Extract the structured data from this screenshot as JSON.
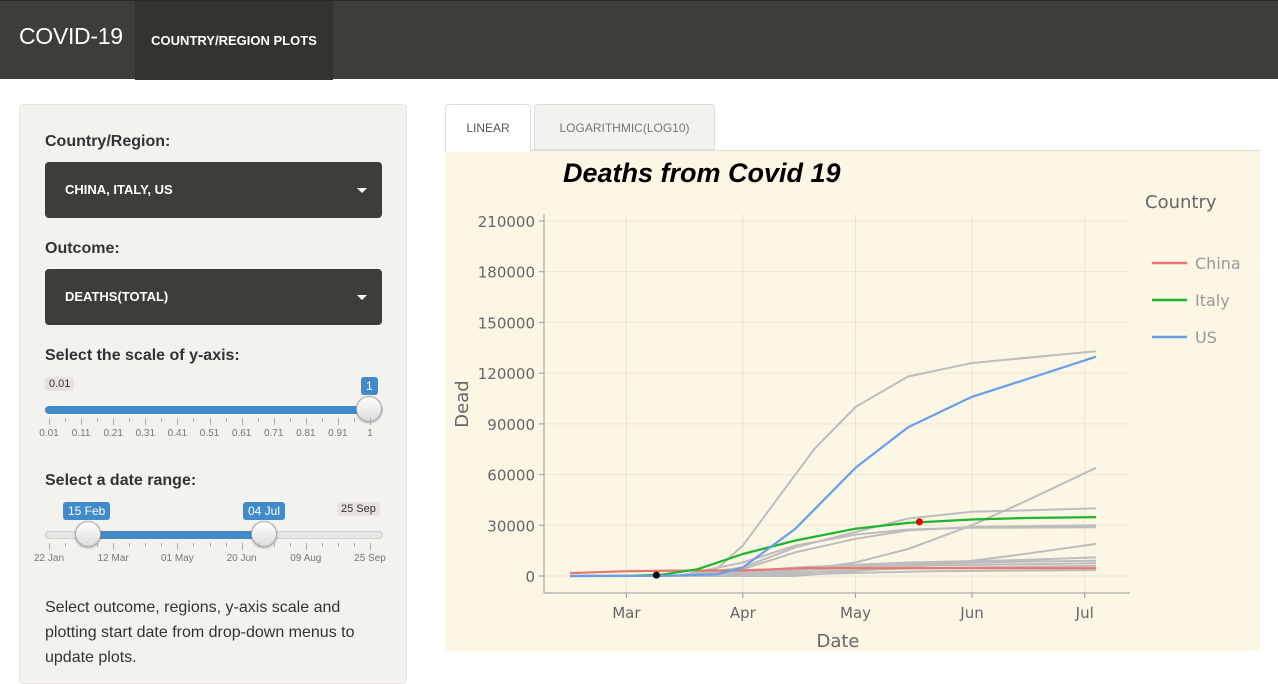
{
  "navbar": {
    "brand": "COVID-19",
    "tab": "COUNTRY/REGION PLOTS"
  },
  "sidebar": {
    "country_label": "Country/Region:",
    "country_value": "CHINA, ITALY, US",
    "outcome_label": "Outcome:",
    "outcome_value": "DEATHS(TOTAL)",
    "scale_label": "Select the scale of y-axis:",
    "scale_slider": {
      "min_label": "0.01",
      "max_label": "1",
      "value": 1,
      "value_label": "1",
      "min": 0.01,
      "max": 1,
      "tick_labels": [
        "0.01",
        "0.11",
        "0.21",
        "0.31",
        "0.41",
        "0.51",
        "0.61",
        "0.71",
        "0.81",
        "0.91",
        "1"
      ]
    },
    "date_label": "Select a date range:",
    "date_slider": {
      "max_label": "25 Sep",
      "from_label": "15 Feb",
      "to_label": "04 Jul",
      "from": "2020-02-15",
      "to": "2020-07-04",
      "min": "2020-01-22",
      "max": "2020-09-25",
      "tick_labels": [
        "22 Jan",
        "12 Mar",
        "01 May",
        "20 Jun",
        "09 Aug",
        "25 Sep"
      ]
    },
    "help_text": "Select outcome, regions, y-axis scale and plotting start date from drop-down menus to update plots."
  },
  "tabs": {
    "linear": "LINEAR",
    "log": "LOGARITHMIC(LOG10)",
    "active": "linear"
  },
  "colors": {
    "navbar": "#3e3d37",
    "plot_bg": "#fcf6e5",
    "china": "#e8776f",
    "italy": "#1db52f",
    "us": "#6a9eeb",
    "other": "#bdbdbd",
    "slider": "#428bca"
  },
  "chart_data": {
    "type": "line",
    "title": "Deaths from Covid 19",
    "xlabel": "Date",
    "ylabel": "Dead",
    "x_ticks": [
      "Mar",
      "Apr",
      "May",
      "Jun",
      "Jul"
    ],
    "y_ticks": [
      0,
      30000,
      60000,
      90000,
      120000,
      150000,
      180000,
      210000
    ],
    "ylim": [
      0,
      210000
    ],
    "xlim": [
      "2020-02-15",
      "2020-07-04"
    ],
    "legend_title": "Country",
    "legend_position": "right",
    "grid": true,
    "series": [
      {
        "name": "China",
        "color": "#e8776f",
        "points": [
          [
            "2020-02-15",
            1700
          ],
          [
            "2020-02-29",
            2800
          ],
          [
            "2020-03-15",
            3200
          ],
          [
            "2020-04-01",
            3300
          ],
          [
            "2020-04-17",
            4600
          ],
          [
            "2020-05-15",
            4640
          ],
          [
            "2020-07-04",
            4640
          ]
        ]
      },
      {
        "name": "Italy",
        "color": "#1db52f",
        "points": [
          [
            "2020-02-15",
            0
          ],
          [
            "2020-03-01",
            30
          ],
          [
            "2020-03-10",
            630
          ],
          [
            "2020-03-20",
            4000
          ],
          [
            "2020-04-01",
            13000
          ],
          [
            "2020-04-15",
            21000
          ],
          [
            "2020-05-01",
            28000
          ],
          [
            "2020-05-15",
            31400
          ],
          [
            "2020-06-01",
            33400
          ],
          [
            "2020-06-15",
            34300
          ],
          [
            "2020-07-04",
            34850
          ]
        ]
      },
      {
        "name": "US",
        "color": "#6a9eeb",
        "points": [
          [
            "2020-02-15",
            0
          ],
          [
            "2020-03-10",
            30
          ],
          [
            "2020-03-25",
            1000
          ],
          [
            "2020-04-01",
            5000
          ],
          [
            "2020-04-15",
            28000
          ],
          [
            "2020-05-01",
            64000
          ],
          [
            "2020-05-15",
            88000
          ],
          [
            "2020-06-01",
            106000
          ],
          [
            "2020-06-15",
            116000
          ],
          [
            "2020-07-04",
            129700
          ]
        ]
      },
      {
        "color": "#bdbdbd",
        "points": [
          [
            "2020-02-15",
            0
          ],
          [
            "2020-03-15",
            0
          ],
          [
            "2020-03-25",
            4000
          ],
          [
            "2020-04-01",
            18000
          ],
          [
            "2020-04-10",
            45000
          ],
          [
            "2020-04-20",
            75000
          ],
          [
            "2020-05-01",
            100000
          ],
          [
            "2020-05-15",
            118000
          ],
          [
            "2020-06-01",
            126000
          ],
          [
            "2020-07-04",
            133000
          ]
        ]
      },
      {
        "color": "#bdbdbd",
        "points": [
          [
            "2020-02-15",
            0
          ],
          [
            "2020-04-01",
            0
          ],
          [
            "2020-04-15",
            3000
          ],
          [
            "2020-05-01",
            8000
          ],
          [
            "2020-05-15",
            16000
          ],
          [
            "2020-06-01",
            30000
          ],
          [
            "2020-06-15",
            44000
          ],
          [
            "2020-07-04",
            64000
          ]
        ]
      },
      {
        "color": "#bdbdbd",
        "points": [
          [
            "2020-02-15",
            0
          ],
          [
            "2020-03-15",
            100
          ],
          [
            "2020-04-01",
            5000
          ],
          [
            "2020-04-15",
            17000
          ],
          [
            "2020-05-01",
            26000
          ],
          [
            "2020-05-15",
            34000
          ],
          [
            "2020-06-01",
            38000
          ],
          [
            "2020-07-04",
            40000
          ]
        ]
      },
      {
        "color": "#bdbdbd",
        "points": [
          [
            "2020-02-15",
            0
          ],
          [
            "2020-03-15",
            200
          ],
          [
            "2020-04-01",
            8000
          ],
          [
            "2020-04-15",
            18000
          ],
          [
            "2020-05-01",
            24500
          ],
          [
            "2020-05-15",
            27500
          ],
          [
            "2020-06-01",
            28500
          ],
          [
            "2020-07-04",
            28800
          ]
        ]
      },
      {
        "color": "#bdbdbd",
        "points": [
          [
            "2020-02-15",
            0
          ],
          [
            "2020-03-15",
            200
          ],
          [
            "2020-04-01",
            4000
          ],
          [
            "2020-04-15",
            14000
          ],
          [
            "2020-05-01",
            22000
          ],
          [
            "2020-05-15",
            27000
          ],
          [
            "2020-06-01",
            29000
          ],
          [
            "2020-07-04",
            30000
          ]
        ]
      },
      {
        "color": "#bdbdbd",
        "points": [
          [
            "2020-02-15",
            0
          ],
          [
            "2020-04-15",
            0
          ],
          [
            "2020-05-01",
            3000
          ],
          [
            "2020-05-15",
            5000
          ],
          [
            "2020-06-01",
            9000
          ],
          [
            "2020-06-15",
            13000
          ],
          [
            "2020-07-04",
            19000
          ]
        ]
      },
      {
        "color": "#bdbdbd",
        "points": [
          [
            "2020-02-15",
            0
          ],
          [
            "2020-03-20",
            300
          ],
          [
            "2020-04-15",
            5000
          ],
          [
            "2020-05-15",
            8000
          ],
          [
            "2020-06-15",
            9500
          ],
          [
            "2020-07-04",
            11000
          ]
        ]
      },
      {
        "color": "#bdbdbd",
        "points": [
          [
            "2020-02-15",
            0
          ],
          [
            "2020-03-20",
            200
          ],
          [
            "2020-04-15",
            4500
          ],
          [
            "2020-05-15",
            7000
          ],
          [
            "2020-06-15",
            8500
          ],
          [
            "2020-07-04",
            9000
          ]
        ]
      },
      {
        "color": "#bdbdbd",
        "points": [
          [
            "2020-02-15",
            0
          ],
          [
            "2020-03-25",
            200
          ],
          [
            "2020-04-15",
            3500
          ],
          [
            "2020-05-15",
            6000
          ],
          [
            "2020-06-15",
            7000
          ],
          [
            "2020-07-04",
            7500
          ]
        ]
      },
      {
        "color": "#bdbdbd",
        "points": [
          [
            "2020-02-15",
            0
          ],
          [
            "2020-03-25",
            100
          ],
          [
            "2020-04-20",
            2500
          ],
          [
            "2020-05-15",
            4500
          ],
          [
            "2020-06-15",
            5500
          ],
          [
            "2020-07-04",
            6000
          ]
        ]
      },
      {
        "color": "#bdbdbd",
        "points": [
          [
            "2020-02-15",
            0
          ],
          [
            "2020-04-01",
            100
          ],
          [
            "2020-04-25",
            1500
          ],
          [
            "2020-05-20",
            2800
          ],
          [
            "2020-07-04",
            3500
          ]
        ]
      }
    ],
    "markers": [
      {
        "date": "2020-03-09",
        "value": 500,
        "color": "#000000"
      },
      {
        "date": "2020-05-18",
        "value": 32000,
        "color": "#e00000"
      }
    ]
  }
}
